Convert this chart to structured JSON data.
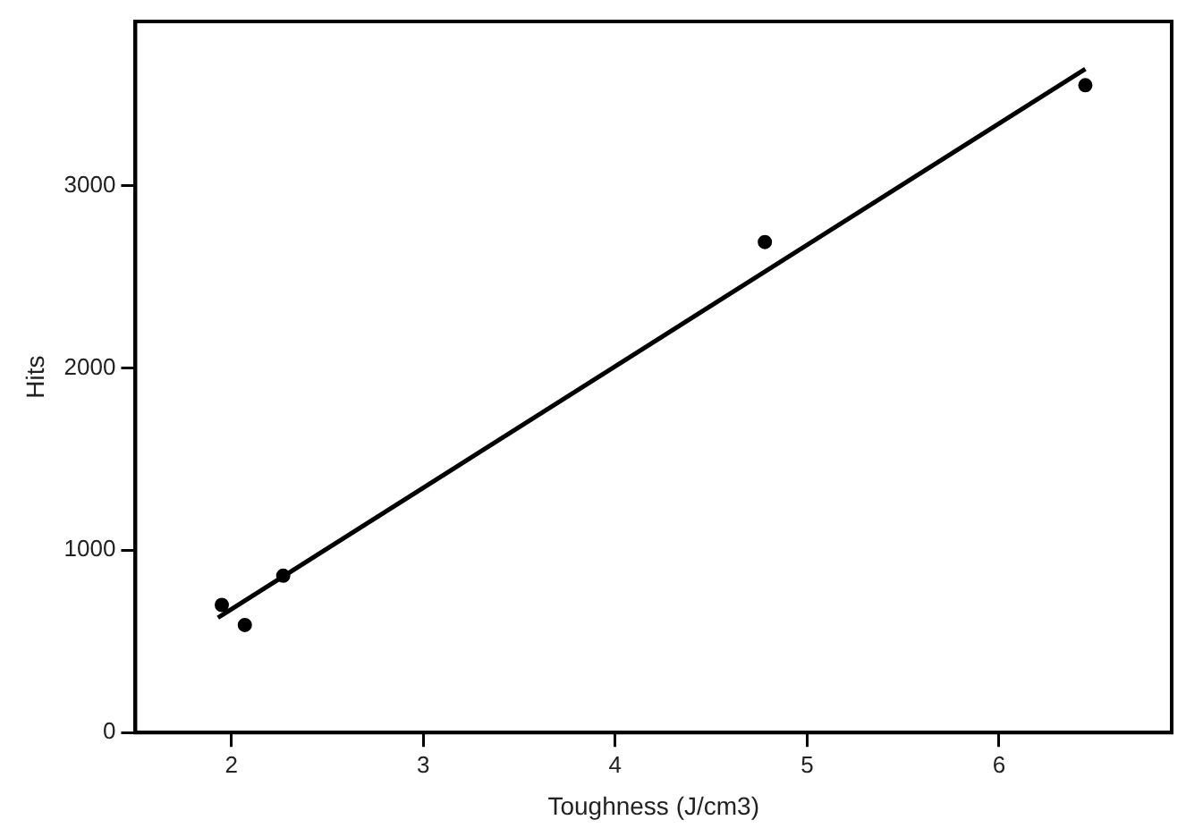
{
  "chart_data": {
    "type": "scatter",
    "xlabel": "Toughness (J/cm3)",
    "ylabel": "Hits",
    "xlim": [
      1.5,
      6.9
    ],
    "xticks": [
      2,
      3,
      4,
      5,
      6
    ],
    "ylim": [
      0,
      3900
    ],
    "yticks": [
      0,
      1000,
      2000,
      3000
    ],
    "grid": false,
    "legend": false,
    "marker": "circle",
    "series": [
      {
        "color": "#000000",
        "x": [
          1.95,
          2.07,
          2.27,
          4.78,
          6.45
        ],
        "values": [
          700,
          590,
          860,
          2690,
          3550
        ]
      },
      {
        "type": "line",
        "color": "#000000",
        "x": [
          1.93,
          6.45
        ],
        "values": [
          630,
          3640
        ],
        "marker": "none",
        "line_style": "solid"
      }
    ]
  }
}
